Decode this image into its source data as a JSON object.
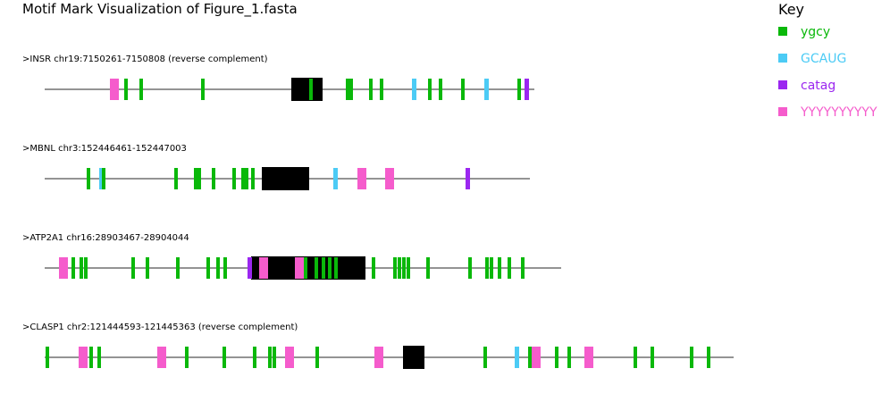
{
  "title": "Motif Mark Visualization of Figure_1.fasta",
  "key": {
    "title": "Key",
    "items": [
      {
        "label": "ygcy",
        "color": "#0ab80a"
      },
      {
        "label": "GCAUG",
        "color": "#4ccbf5"
      },
      {
        "label": "catag",
        "color": "#9b27f0"
      },
      {
        "label": "YYYYYYYYYY",
        "color": "#f55ccc"
      }
    ]
  },
  "colors": {
    "exon": "#000000",
    "line": "#707070"
  },
  "sequences": [
    {
      "label": ">INSR chr19:7150261-7150808 (reverse complement)",
      "length": 548,
      "exon": [
        276,
        311
      ],
      "motifs": [
        {
          "motif": "YYYYYYYYYY",
          "start": 73,
          "end": 83
        },
        {
          "motif": "ygcy",
          "start": 89,
          "end": 93
        },
        {
          "motif": "ygcy",
          "start": 106,
          "end": 110
        },
        {
          "motif": "ygcy",
          "start": 175,
          "end": 179
        },
        {
          "motif": "ygcy",
          "start": 296,
          "end": 300
        },
        {
          "motif": "ygcy",
          "start": 337,
          "end": 341
        },
        {
          "motif": "ygcy",
          "start": 341,
          "end": 345
        },
        {
          "motif": "ygcy",
          "start": 363,
          "end": 367
        },
        {
          "motif": "ygcy",
          "start": 375,
          "end": 379
        },
        {
          "motif": "GCAUG",
          "start": 411,
          "end": 416
        },
        {
          "motif": "ygcy",
          "start": 429,
          "end": 433
        },
        {
          "motif": "ygcy",
          "start": 441,
          "end": 445
        },
        {
          "motif": "ygcy",
          "start": 466,
          "end": 470
        },
        {
          "motif": "GCAUG",
          "start": 492,
          "end": 497
        },
        {
          "motif": "ygcy",
          "start": 529,
          "end": 533
        },
        {
          "motif": "catag",
          "start": 537,
          "end": 542
        }
      ]
    },
    {
      "label": ">MBNL chr3:152446461-152447003",
      "length": 543,
      "exon": [
        243,
        296
      ],
      "motifs": [
        {
          "motif": "ygcy",
          "start": 47,
          "end": 51
        },
        {
          "motif": "GCAUG",
          "start": 61,
          "end": 66
        },
        {
          "motif": "ygcy",
          "start": 64,
          "end": 68
        },
        {
          "motif": "ygcy",
          "start": 145,
          "end": 149
        },
        {
          "motif": "ygcy",
          "start": 167,
          "end": 171
        },
        {
          "motif": "ygcy",
          "start": 171,
          "end": 175
        },
        {
          "motif": "ygcy",
          "start": 187,
          "end": 191
        },
        {
          "motif": "ygcy",
          "start": 210,
          "end": 214
        },
        {
          "motif": "ygcy",
          "start": 220,
          "end": 224
        },
        {
          "motif": "ygcy",
          "start": 224,
          "end": 228
        },
        {
          "motif": "ygcy",
          "start": 231,
          "end": 235
        },
        {
          "motif": "GCAUG",
          "start": 323,
          "end": 328
        },
        {
          "motif": "YYYYYYYYYY",
          "start": 350,
          "end": 360
        },
        {
          "motif": "YYYYYYYYYY",
          "start": 381,
          "end": 391
        },
        {
          "motif": "catag",
          "start": 471,
          "end": 476
        }
      ]
    },
    {
      "label": ">ATP2A1 chr16:28903467-28904044",
      "length": 578,
      "exon": [
        231,
        359
      ],
      "motifs": [
        {
          "motif": "YYYYYYYYYY",
          "start": 16,
          "end": 26
        },
        {
          "motif": "ygcy",
          "start": 30,
          "end": 34
        },
        {
          "motif": "ygcy",
          "start": 39,
          "end": 43
        },
        {
          "motif": "ygcy",
          "start": 44,
          "end": 48
        },
        {
          "motif": "ygcy",
          "start": 97,
          "end": 101
        },
        {
          "motif": "ygcy",
          "start": 113,
          "end": 117
        },
        {
          "motif": "ygcy",
          "start": 147,
          "end": 151
        },
        {
          "motif": "ygcy",
          "start": 181,
          "end": 185
        },
        {
          "motif": "ygcy",
          "start": 192,
          "end": 196
        },
        {
          "motif": "ygcy",
          "start": 200,
          "end": 204
        },
        {
          "motif": "catag",
          "start": 227,
          "end": 232
        },
        {
          "motif": "YYYYYYYYYY",
          "start": 240,
          "end": 250
        },
        {
          "motif": "YYYYYYYYYY",
          "start": 280,
          "end": 290
        },
        {
          "motif": "ygcy",
          "start": 290,
          "end": 294
        },
        {
          "motif": "ygcy",
          "start": 302,
          "end": 306
        },
        {
          "motif": "ygcy",
          "start": 310,
          "end": 314
        },
        {
          "motif": "ygcy",
          "start": 317,
          "end": 321
        },
        {
          "motif": "ygcy",
          "start": 324,
          "end": 328
        },
        {
          "motif": "ygcy",
          "start": 366,
          "end": 370
        },
        {
          "motif": "ygcy",
          "start": 390,
          "end": 394
        },
        {
          "motif": "ygcy",
          "start": 395,
          "end": 399
        },
        {
          "motif": "ygcy",
          "start": 400,
          "end": 404
        },
        {
          "motif": "ygcy",
          "start": 405,
          "end": 409
        },
        {
          "motif": "ygcy",
          "start": 427,
          "end": 431
        },
        {
          "motif": "ygcy",
          "start": 474,
          "end": 478
        },
        {
          "motif": "ygcy",
          "start": 493,
          "end": 497
        },
        {
          "motif": "ygcy",
          "start": 498,
          "end": 502
        },
        {
          "motif": "ygcy",
          "start": 507,
          "end": 511
        },
        {
          "motif": "ygcy",
          "start": 518,
          "end": 522
        },
        {
          "motif": "ygcy",
          "start": 533,
          "end": 537
        }
      ]
    },
    {
      "label": ">CLASP1 chr2:121444593-121445363 (reverse complement)",
      "length": 771,
      "exon": [
        401,
        425
      ],
      "motifs": [
        {
          "motif": "ygcy",
          "start": 1,
          "end": 5
        },
        {
          "motif": "YYYYYYYYYY",
          "start": 38,
          "end": 48
        },
        {
          "motif": "ygcy",
          "start": 50,
          "end": 54
        },
        {
          "motif": "ygcy",
          "start": 59,
          "end": 63
        },
        {
          "motif": "YYYYYYYYYY",
          "start": 126,
          "end": 136
        },
        {
          "motif": "ygcy",
          "start": 157,
          "end": 161
        },
        {
          "motif": "ygcy",
          "start": 199,
          "end": 203
        },
        {
          "motif": "ygcy",
          "start": 233,
          "end": 237
        },
        {
          "motif": "ygcy",
          "start": 250,
          "end": 254
        },
        {
          "motif": "ygcy",
          "start": 255,
          "end": 259
        },
        {
          "motif": "YYYYYYYYYY",
          "start": 269,
          "end": 279
        },
        {
          "motif": "ygcy",
          "start": 303,
          "end": 307
        },
        {
          "motif": "YYYYYYYYYY",
          "start": 369,
          "end": 379
        },
        {
          "motif": "ygcy",
          "start": 491,
          "end": 495
        },
        {
          "motif": "GCAUG",
          "start": 526,
          "end": 531
        },
        {
          "motif": "ygcy",
          "start": 541,
          "end": 545
        },
        {
          "motif": "YYYYYYYYYY",
          "start": 545,
          "end": 555
        },
        {
          "motif": "ygcy",
          "start": 571,
          "end": 575
        },
        {
          "motif": "ygcy",
          "start": 585,
          "end": 589
        },
        {
          "motif": "YYYYYYYYYY",
          "start": 604,
          "end": 614
        },
        {
          "motif": "ygcy",
          "start": 659,
          "end": 663
        },
        {
          "motif": "ygcy",
          "start": 678,
          "end": 682
        },
        {
          "motif": "ygcy",
          "start": 722,
          "end": 726
        },
        {
          "motif": "ygcy",
          "start": 741,
          "end": 745
        }
      ]
    }
  ]
}
